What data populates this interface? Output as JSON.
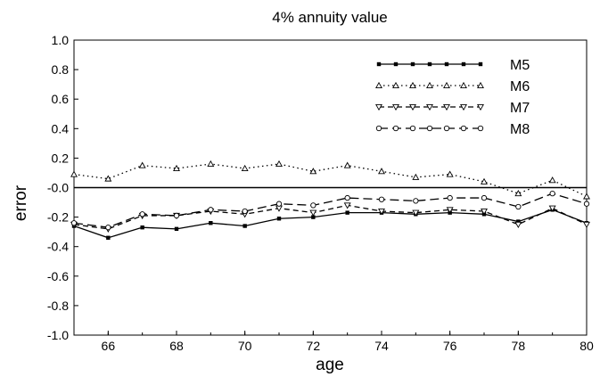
{
  "chart_data": {
    "type": "line",
    "title": "4% annuity value",
    "xlabel": "age",
    "ylabel": "error",
    "xlim": [
      65,
      80
    ],
    "ylim": [
      -1.0,
      1.0
    ],
    "x_ticks": [
      66,
      68,
      70,
      72,
      74,
      76,
      78,
      80
    ],
    "x_tick_labels": [
      "66",
      "68",
      "70",
      "72",
      "74",
      "76",
      "78",
      "80"
    ],
    "y_ticks": [
      1.0,
      0.8,
      0.6,
      0.4,
      0.2,
      0.0,
      -0.2,
      -0.4,
      -0.6,
      -0.8,
      -1.0
    ],
    "y_tick_labels": [
      "1.0",
      "0.8",
      "0.6",
      "0.4",
      "0.2",
      "-0.0",
      "-0.2",
      "-0.4",
      "-0.6",
      "-0.8",
      "-1.0"
    ],
    "grid": false,
    "legend_position": "top-right",
    "reference_line": 0.0,
    "x": [
      65,
      66,
      67,
      68,
      69,
      70,
      71,
      72,
      73,
      74,
      75,
      76,
      77,
      78,
      79,
      80
    ],
    "series": [
      {
        "name": "M5",
        "style": "solid",
        "marker": "square",
        "values": [
          -0.26,
          -0.34,
          -0.27,
          -0.28,
          -0.24,
          -0.26,
          -0.21,
          -0.2,
          -0.17,
          -0.17,
          -0.18,
          -0.17,
          -0.18,
          -0.23,
          -0.15,
          -0.24
        ]
      },
      {
        "name": "M6",
        "style": "dotted",
        "marker": "triangle-up",
        "values": [
          0.09,
          0.06,
          0.15,
          0.13,
          0.16,
          0.13,
          0.16,
          0.11,
          0.15,
          0.11,
          0.07,
          0.09,
          0.04,
          -0.04,
          0.05,
          -0.06
        ]
      },
      {
        "name": "M7",
        "style": "dashed",
        "marker": "triangle-down",
        "values": [
          -0.25,
          -0.28,
          -0.19,
          -0.19,
          -0.16,
          -0.18,
          -0.14,
          -0.17,
          -0.12,
          -0.16,
          -0.17,
          -0.15,
          -0.16,
          -0.25,
          -0.14,
          -0.25
        ]
      },
      {
        "name": "M8",
        "style": "longdash",
        "marker": "circle",
        "values": [
          -0.24,
          -0.27,
          -0.18,
          -0.19,
          -0.15,
          -0.16,
          -0.11,
          -0.12,
          -0.07,
          -0.08,
          -0.09,
          -0.07,
          -0.07,
          -0.13,
          -0.04,
          -0.11
        ]
      }
    ]
  }
}
